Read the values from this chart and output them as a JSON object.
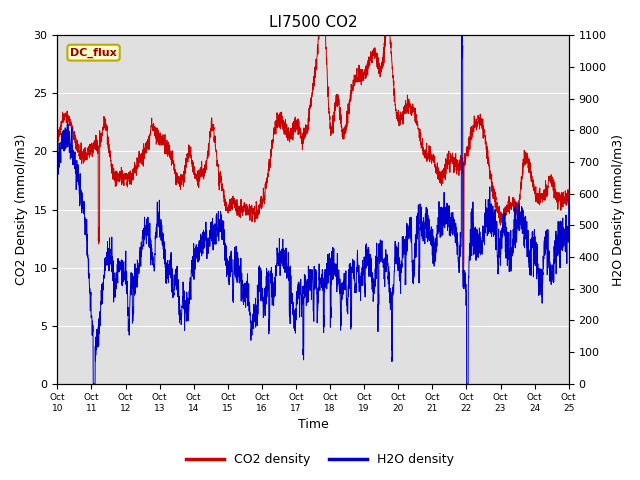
{
  "title": "LI7500 CO2",
  "xlabel": "Time",
  "ylabel_left": "CO2 Density (mmol/m3)",
  "ylabel_right": "H2O Density (mmol/m3)",
  "ylim_left": [
    0,
    30
  ],
  "ylim_right": [
    0,
    1100
  ],
  "yticks_left": [
    0,
    5,
    10,
    15,
    20,
    25,
    30
  ],
  "yticks_right": [
    0,
    100,
    200,
    300,
    400,
    500,
    600,
    700,
    800,
    900,
    1000,
    1100
  ],
  "xtick_labels": [
    "Oct 10",
    "Oct 11",
    "Oct 12",
    "Oct 13",
    "Oct 14",
    "Oct 15",
    "Oct 16",
    "Oct 17",
    "Oct 18",
    "Oct 19",
    "Oct 20",
    "Oct 21",
    "Oct 22",
    "Oct 23",
    "Oct 24",
    "Oct 25"
  ],
  "co2_color": "#cc0000",
  "h2o_color": "#0000cc",
  "fig_bg_color": "#ffffff",
  "legend_box_label": "DC_flux",
  "legend_box_bg": "#ffffcc",
  "legend_box_edge": "#bbaa00",
  "plot_bg_color": "#e0e0e0",
  "n_points": 3000,
  "linewidth": 0.7
}
